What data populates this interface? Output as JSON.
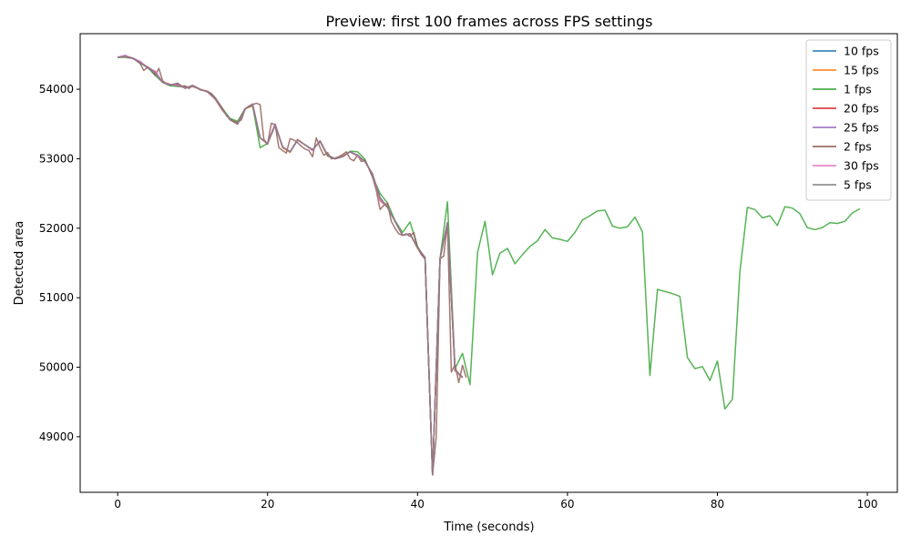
{
  "chart_data": {
    "type": "line",
    "title": "Preview: first 100 frames across FPS settings",
    "xlabel": "Time (seconds)",
    "ylabel": "Detected area",
    "xlim": [
      -5,
      104
    ],
    "ylim": [
      48200,
      54800
    ],
    "xticks": [
      0,
      20,
      40,
      60,
      80,
      100
    ],
    "yticks": [
      49000,
      50000,
      51000,
      52000,
      53000,
      54000
    ],
    "grid": false,
    "legend_position": "top-right",
    "series": [
      {
        "name": "10 fps",
        "color": "#1f77b4",
        "x": [
          0,
          1,
          2,
          3,
          4,
          5,
          6,
          7,
          8,
          9,
          10,
          11,
          12,
          13,
          14,
          15,
          16,
          17,
          18,
          19,
          20,
          21,
          22,
          23,
          24,
          25,
          26,
          27,
          28,
          29,
          30,
          31,
          32,
          33,
          34,
          35,
          36,
          37,
          38,
          39,
          40,
          41,
          42,
          43,
          44,
          45,
          46
        ],
        "y": [
          54460,
          54470,
          54450,
          54380,
          54320,
          54250,
          54100,
          54060,
          54080,
          54020,
          54050,
          54000,
          53960,
          53870,
          53700,
          53560,
          53500,
          53720,
          53780,
          53300,
          53220,
          53480,
          53170,
          53100,
          53270,
          53200,
          53130,
          53250,
          53050,
          53000,
          53030,
          53100,
          53050,
          52960,
          52780,
          52440,
          52300,
          52100,
          51900,
          51920,
          51720,
          51580,
          48450,
          51560,
          52080,
          49960,
          49850
        ]
      },
      {
        "name": "15 fps",
        "color": "#ff7f0e",
        "x": [
          0,
          1,
          2,
          3,
          4,
          5,
          6,
          7,
          8,
          9,
          10,
          11,
          12,
          13,
          14,
          15,
          16,
          17,
          18,
          19,
          20,
          21,
          22,
          23,
          24,
          25,
          26,
          27,
          28,
          29,
          30,
          31,
          32,
          33,
          34,
          35,
          36,
          37,
          38,
          39,
          40,
          41,
          42,
          43,
          44,
          45,
          46
        ],
        "y": [
          54460,
          54475,
          54450,
          54390,
          54320,
          54240,
          54110,
          54070,
          54060,
          54030,
          54040,
          54000,
          53970,
          53860,
          53690,
          53570,
          53510,
          53720,
          53760,
          53300,
          53210,
          53490,
          53160,
          53090,
          53280,
          53200,
          53120,
          53260,
          53040,
          53000,
          53040,
          53100,
          53040,
          52960,
          52770,
          52420,
          52310,
          52100,
          51900,
          51920,
          51710,
          51570,
          48460,
          51560,
          52070,
          49970,
          49850
        ]
      },
      {
        "name": "1 fps",
        "color": "#2ca02c",
        "x": [
          0,
          1,
          2,
          3,
          4,
          5,
          6,
          7,
          8,
          9,
          10,
          11,
          12,
          13,
          14,
          15,
          16,
          17,
          18,
          19,
          20,
          21,
          22,
          23,
          24,
          25,
          26,
          27,
          28,
          29,
          30,
          31,
          32,
          33,
          34,
          35,
          36,
          37,
          38,
          39,
          40,
          41,
          42,
          43,
          44,
          45,
          46,
          47,
          48,
          49,
          50,
          51,
          52,
          53,
          54,
          55,
          56,
          57,
          58,
          59,
          60,
          61,
          62,
          63,
          64,
          65,
          66,
          67,
          68,
          69,
          70,
          71,
          72,
          73,
          74,
          75,
          76,
          77,
          78,
          79,
          80,
          81,
          82,
          83,
          84,
          85,
          86,
          87,
          88,
          89,
          90,
          91,
          92,
          93,
          94,
          95,
          96,
          97,
          98,
          99
        ],
        "y": [
          54460,
          54460,
          54450,
          54380,
          54310,
          54200,
          54100,
          54050,
          54040,
          54030,
          54040,
          54000,
          53960,
          53880,
          53720,
          53580,
          53540,
          53720,
          53770,
          53160,
          53220,
          53490,
          53170,
          53100,
          53270,
          53200,
          53130,
          53250,
          53040,
          53000,
          53030,
          53110,
          53100,
          52990,
          52740,
          52500,
          52360,
          52110,
          51940,
          52090,
          51740,
          51560,
          48450,
          51560,
          52380,
          49980,
          50200,
          49750,
          51650,
          52100,
          51330,
          51640,
          51710,
          51490,
          51620,
          51740,
          51820,
          51980,
          51860,
          51840,
          51810,
          51940,
          52120,
          52180,
          52250,
          52260,
          52030,
          52000,
          52020,
          52160,
          51950,
          49880,
          51120,
          51090,
          51060,
          51020,
          50140,
          49980,
          50010,
          49810,
          50090,
          49400,
          49540,
          51380,
          52300,
          52270,
          52150,
          52180,
          52040,
          52310,
          52290,
          52210,
          52010,
          51980,
          52010,
          52080,
          52070,
          52100,
          52220,
          52280
        ]
      },
      {
        "name": "20 fps",
        "color": "#d62728",
        "x": [
          0,
          1,
          2,
          3,
          4,
          5,
          6,
          7,
          8,
          9,
          10,
          11,
          12,
          13,
          14,
          15,
          16,
          17,
          18,
          19,
          20,
          21,
          22,
          23,
          24,
          25,
          26,
          27,
          28,
          29,
          30,
          31,
          32,
          33,
          34,
          35,
          36,
          37,
          38,
          39,
          40,
          41,
          42,
          43,
          44,
          45,
          46
        ],
        "y": [
          54460,
          54470,
          54450,
          54390,
          54320,
          54250,
          54100,
          54060,
          54070,
          54020,
          54050,
          54000,
          53960,
          53860,
          53700,
          53560,
          53500,
          53720,
          53780,
          53300,
          53220,
          53500,
          53170,
          53100,
          53270,
          53200,
          53130,
          53250,
          53050,
          53000,
          53030,
          53100,
          53040,
          52960,
          52780,
          52400,
          52300,
          52100,
          51900,
          51920,
          51720,
          51580,
          48450,
          51560,
          52080,
          49950,
          49860
        ]
      },
      {
        "name": "25 fps",
        "color": "#9467bd",
        "x": [
          0,
          1,
          2,
          3,
          4,
          5,
          6,
          7,
          8,
          9,
          10,
          11,
          12,
          13,
          14,
          15,
          16,
          17,
          18,
          19,
          20,
          21,
          22,
          23,
          24,
          25,
          26,
          27,
          28,
          29,
          30,
          31,
          32,
          33,
          34,
          35,
          36,
          37,
          38,
          39,
          40,
          41,
          42,
          43,
          44,
          45,
          46
        ],
        "y": [
          54460,
          54490,
          54440,
          54400,
          54300,
          54260,
          54100,
          54070,
          54060,
          54020,
          54050,
          54000,
          53960,
          53870,
          53700,
          53560,
          53500,
          53720,
          53790,
          53300,
          53220,
          53500,
          53170,
          53100,
          53270,
          53200,
          53120,
          53260,
          53050,
          53000,
          53030,
          53100,
          53040,
          52960,
          52770,
          52420,
          52300,
          52100,
          51900,
          51920,
          51720,
          51580,
          48450,
          51560,
          52080,
          49950,
          49850
        ]
      },
      {
        "name": "2 fps",
        "color": "#8c564b",
        "x": [
          0,
          0.5,
          1,
          1.5,
          2,
          2.5,
          3,
          3.5,
          4,
          4.5,
          5,
          5.5,
          6,
          6.5,
          7,
          7.5,
          8,
          8.5,
          9,
          9.5,
          10,
          10.5,
          11,
          11.5,
          12,
          12.5,
          13,
          13.5,
          14,
          14.5,
          15,
          15.5,
          16,
          16.5,
          17,
          17.5,
          18,
          18.5,
          19,
          19.5,
          20,
          20.5,
          21,
          21.5,
          22,
          22.5,
          23,
          23.5,
          24,
          24.5,
          25,
          25.5,
          26,
          26.5,
          27,
          27.5,
          28,
          28.5,
          29,
          29.5,
          30,
          30.5,
          31,
          31.5,
          32,
          32.5,
          33,
          33.5,
          34,
          34.5,
          35,
          35.5,
          36,
          36.5,
          37,
          37.5,
          38,
          38.5,
          39,
          39.5,
          40,
          40.5,
          41,
          41.5,
          42,
          42.5,
          43,
          43.5,
          44,
          44.5,
          45,
          45.5,
          46,
          46.5
        ],
        "y": [
          54460,
          54470,
          54470,
          54450,
          54450,
          54410,
          54370,
          54270,
          54320,
          54280,
          54200,
          54300,
          54120,
          54080,
          54060,
          54070,
          54050,
          54040,
          54050,
          54010,
          54050,
          54030,
          53990,
          53980,
          53970,
          53940,
          53880,
          53800,
          53720,
          53620,
          53570,
          53540,
          53520,
          53560,
          53710,
          53760,
          53780,
          53800,
          53780,
          53280,
          53210,
          53510,
          53490,
          53160,
          53120,
          53080,
          53290,
          53270,
          53230,
          53180,
          53140,
          53120,
          53030,
          53300,
          53160,
          53050,
          53090,
          53000,
          53010,
          53030,
          53060,
          53100,
          53000,
          52970,
          53050,
          52960,
          52980,
          52860,
          52740,
          52540,
          52270,
          52330,
          52360,
          52100,
          52000,
          51920,
          51900,
          51920,
          51880,
          51940,
          51720,
          51620,
          51560,
          50000,
          48450,
          49000,
          51560,
          51600,
          52080,
          49930,
          50040,
          49780,
          50030,
          49850
        ]
      },
      {
        "name": "30 fps",
        "color": "#e377c2",
        "x": [
          0,
          1,
          2,
          3,
          4,
          5,
          6,
          7,
          8,
          9,
          10,
          11,
          12,
          13,
          14,
          15,
          16,
          17,
          18,
          19,
          20,
          21,
          22,
          23,
          24,
          25,
          26,
          27,
          28,
          29,
          30,
          31,
          32,
          33,
          34,
          35,
          36,
          37,
          38,
          39,
          40,
          41,
          42,
          43,
          44,
          45,
          46
        ],
        "y": [
          54460,
          54480,
          54450,
          54400,
          54310,
          54260,
          54100,
          54070,
          54060,
          54020,
          54050,
          54000,
          53960,
          53860,
          53700,
          53560,
          53500,
          53720,
          53790,
          53300,
          53220,
          53500,
          53170,
          53100,
          53270,
          53200,
          53120,
          53260,
          53050,
          53000,
          53030,
          53100,
          53040,
          52960,
          52770,
          52410,
          52300,
          52100,
          51900,
          51920,
          51720,
          51580,
          48450,
          51560,
          52080,
          49950,
          49850
        ]
      },
      {
        "name": "5 fps",
        "color": "#7f7f7f",
        "x": [
          0,
          1,
          2,
          3,
          4,
          5,
          6,
          7,
          8,
          9,
          10,
          11,
          12,
          13,
          14,
          15,
          16,
          17,
          18,
          19,
          20,
          21,
          22,
          23,
          24,
          25,
          26,
          27,
          28,
          29,
          30,
          31,
          32,
          33,
          34,
          35,
          36,
          37,
          38,
          39,
          40,
          41,
          42,
          43,
          44,
          45,
          46
        ],
        "y": [
          54460,
          54470,
          54450,
          54380,
          54320,
          54230,
          54100,
          54060,
          54090,
          54010,
          54060,
          54000,
          53960,
          53870,
          53700,
          53560,
          53500,
          53720,
          53780,
          53300,
          53220,
          53480,
          53170,
          53100,
          53270,
          53200,
          53130,
          53250,
          53050,
          53000,
          53030,
          53100,
          53050,
          52960,
          52780,
          52440,
          52300,
          52100,
          51900,
          51920,
          51720,
          51580,
          48450,
          51560,
          52080,
          49960,
          49850
        ]
      }
    ]
  }
}
